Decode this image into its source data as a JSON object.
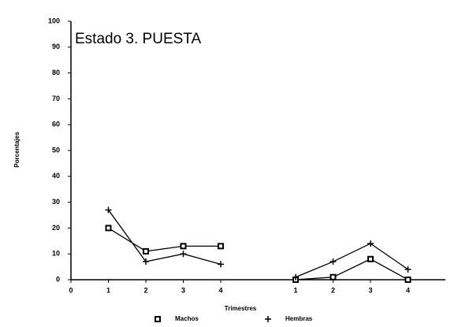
{
  "chart_data": {
    "type": "line",
    "annotation": "Estado 3. PUESTA",
    "xlabel": "Trimestres",
    "ylabel": "Porcentajes",
    "x": [
      1,
      2,
      3,
      4,
      5,
      6,
      7,
      8,
      9
    ],
    "series": [
      {
        "name": "Machos",
        "color": "#000000",
        "marker": "square",
        "values": [
          20,
          11,
          13,
          13,
          null,
          0,
          1,
          8,
          0
        ]
      },
      {
        "name": "Hembras",
        "color": "#000000",
        "marker": "plus",
        "values": [
          27,
          7,
          10,
          6,
          null,
          1,
          7,
          14,
          4
        ]
      }
    ],
    "xlim": [
      0,
      10
    ],
    "xticks": [
      0,
      1,
      2,
      3,
      4,
      {
        "value": 6,
        "label": "1"
      },
      {
        "value": 7,
        "label": "2"
      },
      {
        "value": 8,
        "label": "3"
      },
      {
        "value": 9,
        "label": "4"
      }
    ],
    "ylim": [
      0,
      100
    ],
    "yticks": [
      0,
      10,
      20,
      30,
      40,
      50,
      60,
      70,
      80,
      90,
      100
    ],
    "grid": false
  }
}
